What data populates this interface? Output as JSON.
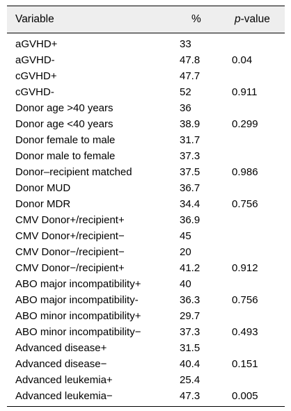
{
  "table": {
    "headers": {
      "variable": "Variable",
      "percent": "%",
      "p_prefix": "p",
      "p_suffix": "-value"
    },
    "rows": [
      {
        "variable": "aGVHD+",
        "percent": "33",
        "p": ""
      },
      {
        "variable": "aGVHD-",
        "percent": "47.8",
        "p": "0.04"
      },
      {
        "variable": "cGVHD+",
        "percent": "47.7",
        "p": ""
      },
      {
        "variable": "cGVHD-",
        "percent": "52",
        "p": "0.911"
      },
      {
        "variable": "Donor age >40 years",
        "percent": "36",
        "p": ""
      },
      {
        "variable": "Donor age <40 years",
        "percent": "38.9",
        "p": "0.299"
      },
      {
        "variable": "Donor female to male",
        "percent": "31.7",
        "p": ""
      },
      {
        "variable": "Donor male to female",
        "percent": "37.3",
        "p": ""
      },
      {
        "variable": "Donor–recipient matched",
        "percent": "37.5",
        "p": "0.986"
      },
      {
        "variable": "Donor MUD",
        "percent": "36.7",
        "p": ""
      },
      {
        "variable": "Donor MDR",
        "percent": "34.4",
        "p": "0.756"
      },
      {
        "variable": "CMV Donor+/recipient+",
        "percent": "36.9",
        "p": ""
      },
      {
        "variable": "CMV Donor+/recipient−",
        "percent": "45",
        "p": ""
      },
      {
        "variable": "CMV Donor−/recipient−",
        "percent": "20",
        "p": ""
      },
      {
        "variable": "CMV Donor−/recipient+",
        "percent": "41.2",
        "p": "0.912"
      },
      {
        "variable": "ABO major incompatibility+",
        "percent": "40",
        "p": ""
      },
      {
        "variable": "ABO major incompatibility-",
        "percent": "36.3",
        "p": "0.756"
      },
      {
        "variable": "ABO minor incompatibility+",
        "percent": "29.7",
        "p": ""
      },
      {
        "variable": "ABO minor incompatibility−",
        "percent": "37.3",
        "p": "0.493"
      },
      {
        "variable": "Advanced disease+",
        "percent": "31.5",
        "p": ""
      },
      {
        "variable": "Advanced disease−",
        "percent": "40.4",
        "p": "0.151"
      },
      {
        "variable": "Advanced leukemia+",
        "percent": "25.4",
        "p": ""
      },
      {
        "variable": "Advanced leukemia−",
        "percent": "47.3",
        "p": "0.005"
      }
    ]
  }
}
